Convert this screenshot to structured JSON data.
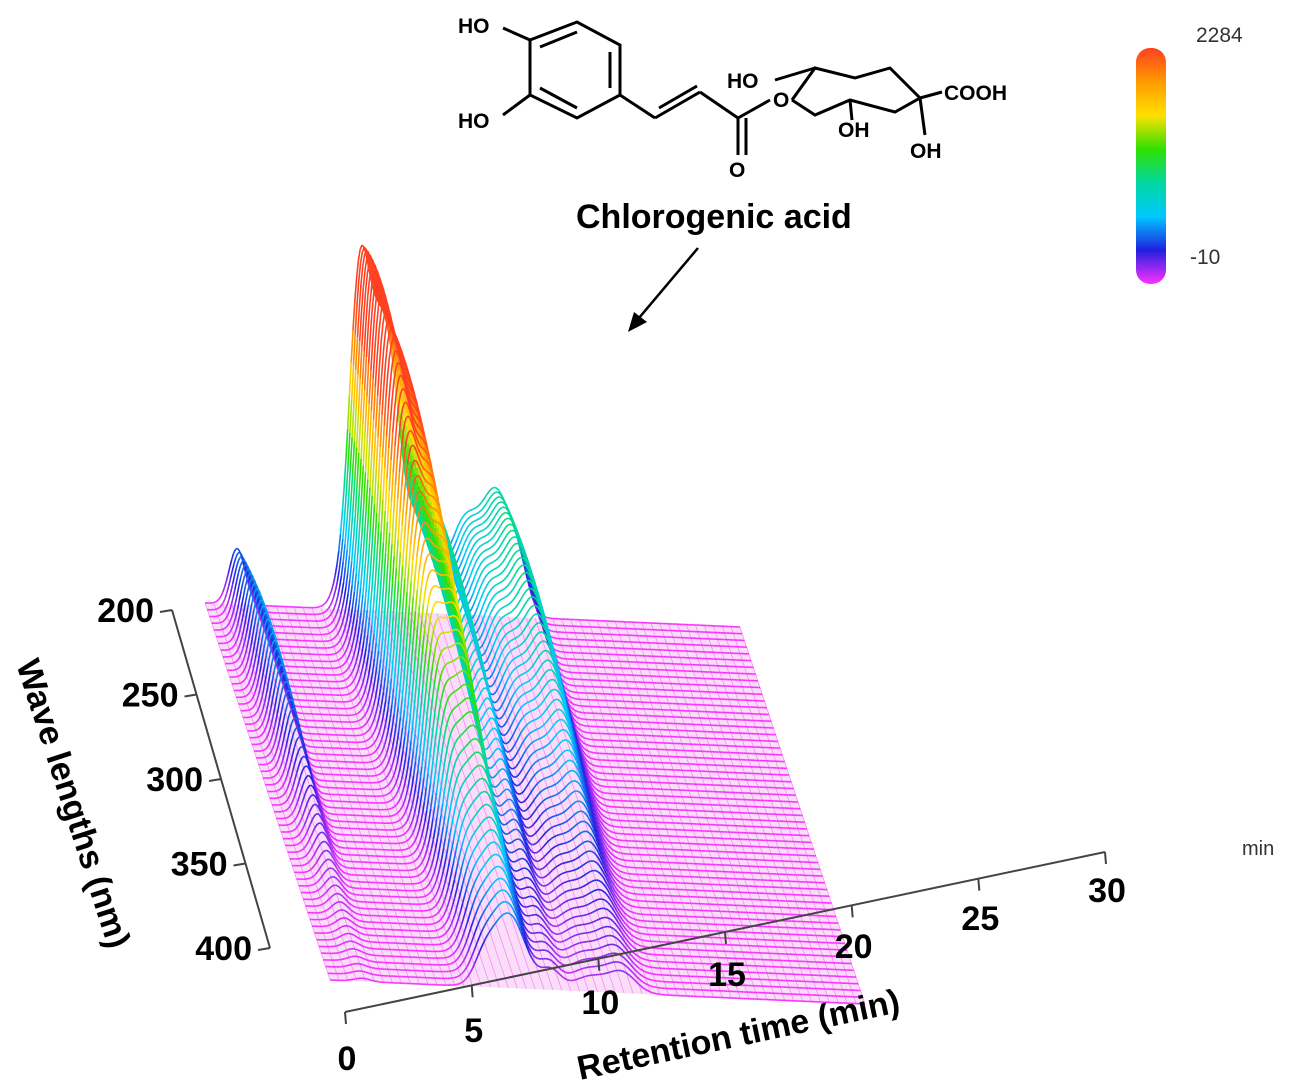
{
  "chart_data": {
    "type": "surface3d",
    "title": "",
    "annotation": {
      "label": "Chlorogenic acid",
      "structure": {
        "labels": [
          "HO",
          "HO",
          "HO",
          "O",
          "OH",
          "COOH",
          "OH",
          "O"
        ]
      }
    },
    "x_axis": {
      "label": "Retention time (min)",
      "unit_label": "min",
      "ticks": [
        0,
        5,
        10,
        15,
        20,
        25,
        30
      ],
      "range": [
        0,
        30
      ]
    },
    "y_axis": {
      "label": "Wave lengths (nm)",
      "ticks": [
        200,
        250,
        300,
        350,
        400
      ],
      "range": [
        200,
        420
      ]
    },
    "color_scale": {
      "max_label": "2284",
      "min_label": "-10",
      "range": [
        -10,
        2284
      ],
      "colors": [
        "#ff4020",
        "#ff9a00",
        "#ffe000",
        "#30e000",
        "#00d8a0",
        "#00c8ff",
        "#2020e0",
        "#ff30ff"
      ]
    },
    "peaks": [
      {
        "time": 1.8,
        "height": 600,
        "width": 0.45,
        "wavelength_center": 255,
        "wavelength_spread": 65
      },
      {
        "time": 7.6,
        "height": 150,
        "width": 0.5,
        "wavelength_center": 235,
        "wavelength_spread": 50
      },
      {
        "time": 8.6,
        "height": 1950,
        "width": 0.55,
        "wavelength_center": 225,
        "wavelength_spread": 85
      },
      {
        "time": 10.0,
        "height": 2284,
        "width": 0.95,
        "wavelength_center": 235,
        "wavelength_spread": 110
      },
      {
        "time": 12.4,
        "height": 900,
        "width": 0.55,
        "wavelength_center": 235,
        "wavelength_spread": 95
      },
      {
        "time": 14.6,
        "height": 760,
        "width": 0.95,
        "wavelength_center": 235,
        "wavelength_spread": 95
      },
      {
        "time": 16.4,
        "height": 880,
        "width": 0.75,
        "wavelength_center": 240,
        "wavelength_spread": 95
      },
      {
        "time": 17.6,
        "height": 350,
        "width": 0.55,
        "wavelength_center": 225,
        "wavelength_spread": 60
      }
    ]
  }
}
